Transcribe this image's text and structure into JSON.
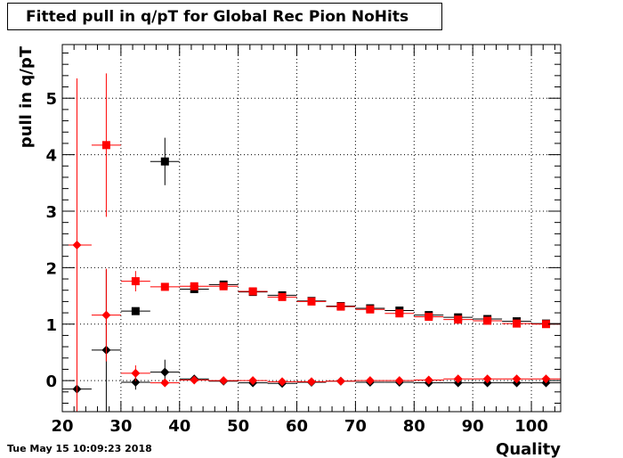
{
  "timestamp": "Tue May 15 10:09:23 2018",
  "chart_data": {
    "type": "scatter",
    "title": "Fitted pull in q/pT for Global Rec Pion NoHits",
    "xlabel": "Quality",
    "ylabel": "pull in q/pT",
    "xlim": [
      20,
      105
    ],
    "ylim": [
      -0.55,
      5.95
    ],
    "x_ticks": [
      20,
      30,
      40,
      50,
      60,
      70,
      80,
      90,
      100
    ],
    "y_ticks": [
      0,
      1,
      2,
      3,
      4,
      5
    ],
    "grid": true,
    "legend": "none",
    "series": [
      {
        "marker": "square",
        "color": "#000000",
        "points": [
          {
            "x": 32.5,
            "y": 1.23,
            "yerr": 0.06
          },
          {
            "x": 37.5,
            "y": 3.88,
            "yerr": 0.42
          },
          {
            "x": 42.5,
            "y": 1.62,
            "yerr": 0.04
          },
          {
            "x": 47.5,
            "y": 1.7,
            "yerr": 0.03
          },
          {
            "x": 52.5,
            "y": 1.57,
            "yerr": 0.02
          },
          {
            "x": 57.5,
            "y": 1.51,
            "yerr": 0.02
          },
          {
            "x": 62.5,
            "y": 1.41,
            "yerr": 0.02
          },
          {
            "x": 67.5,
            "y": 1.32,
            "yerr": 0.02
          },
          {
            "x": 72.5,
            "y": 1.28,
            "yerr": 0.02
          },
          {
            "x": 77.5,
            "y": 1.24,
            "yerr": 0.02
          },
          {
            "x": 82.5,
            "y": 1.16,
            "yerr": 0.02
          },
          {
            "x": 87.5,
            "y": 1.12,
            "yerr": 0.02
          },
          {
            "x": 92.5,
            "y": 1.09,
            "yerr": 0.02
          },
          {
            "x": 97.5,
            "y": 1.05,
            "yerr": 0.02
          },
          {
            "x": 102.5,
            "y": 1.01,
            "yerr": 0.02
          }
        ]
      },
      {
        "marker": "square",
        "color": "#ff0000",
        "points": [
          {
            "x": 27.5,
            "y": 4.17,
            "yerr": 1.27
          },
          {
            "x": 32.5,
            "y": 1.76,
            "yerr": 0.18
          },
          {
            "x": 37.5,
            "y": 1.66,
            "yerr": 0.06
          },
          {
            "x": 42.5,
            "y": 1.67,
            "yerr": 0.04
          },
          {
            "x": 47.5,
            "y": 1.67,
            "yerr": 0.03
          },
          {
            "x": 52.5,
            "y": 1.58,
            "yerr": 0.02
          },
          {
            "x": 57.5,
            "y": 1.48,
            "yerr": 0.02
          },
          {
            "x": 62.5,
            "y": 1.4,
            "yerr": 0.02
          },
          {
            "x": 67.5,
            "y": 1.31,
            "yerr": 0.02
          },
          {
            "x": 72.5,
            "y": 1.26,
            "yerr": 0.02
          },
          {
            "x": 77.5,
            "y": 1.19,
            "yerr": 0.02
          },
          {
            "x": 82.5,
            "y": 1.13,
            "yerr": 0.02
          },
          {
            "x": 87.5,
            "y": 1.08,
            "yerr": 0.02
          },
          {
            "x": 92.5,
            "y": 1.06,
            "yerr": 0.02
          },
          {
            "x": 97.5,
            "y": 1.01,
            "yerr": 0.02
          },
          {
            "x": 102.5,
            "y": 1.0,
            "yerr": 0.02
          }
        ]
      },
      {
        "marker": "diamond",
        "color": "#000000",
        "points": [
          {
            "x": 22.5,
            "y": -0.15,
            "yerr": 0.0
          },
          {
            "x": 27.5,
            "y": 0.54,
            "yerr": 1.43
          },
          {
            "x": 32.5,
            "y": -0.03,
            "yerr": 0.13
          },
          {
            "x": 37.5,
            "y": 0.15,
            "yerr": 0.22
          },
          {
            "x": 42.5,
            "y": 0.03,
            "yerr": 0.04
          },
          {
            "x": 47.5,
            "y": -0.01,
            "yerr": 0.02
          },
          {
            "x": 52.5,
            "y": -0.04,
            "yerr": 0.02
          },
          {
            "x": 57.5,
            "y": -0.05,
            "yerr": 0.02
          },
          {
            "x": 62.5,
            "y": -0.03,
            "yerr": 0.02
          },
          {
            "x": 67.5,
            "y": -0.01,
            "yerr": 0.02
          },
          {
            "x": 72.5,
            "y": -0.03,
            "yerr": 0.02
          },
          {
            "x": 77.5,
            "y": -0.03,
            "yerr": 0.02
          },
          {
            "x": 82.5,
            "y": -0.04,
            "yerr": 0.02
          },
          {
            "x": 87.5,
            "y": -0.04,
            "yerr": 0.02
          },
          {
            "x": 92.5,
            "y": -0.04,
            "yerr": 0.02
          },
          {
            "x": 97.5,
            "y": -0.04,
            "yerr": 0.02
          },
          {
            "x": 102.5,
            "y": -0.04,
            "yerr": 0.02
          }
        ]
      },
      {
        "marker": "diamond",
        "color": "#ff0000",
        "points": [
          {
            "x": 22.5,
            "y": 2.4,
            "yerr": 2.95
          },
          {
            "x": 27.5,
            "y": 1.16,
            "yerr": 0.82
          },
          {
            "x": 32.5,
            "y": 0.13,
            "yerr": 0.14
          },
          {
            "x": 37.5,
            "y": -0.04,
            "yerr": 0.06
          },
          {
            "x": 42.5,
            "y": 0.01,
            "yerr": 0.04
          },
          {
            "x": 47.5,
            "y": 0.0,
            "yerr": 0.02
          },
          {
            "x": 52.5,
            "y": 0.0,
            "yerr": 0.02
          },
          {
            "x": 57.5,
            "y": -0.02,
            "yerr": 0.02
          },
          {
            "x": 62.5,
            "y": -0.02,
            "yerr": 0.02
          },
          {
            "x": 67.5,
            "y": -0.01,
            "yerr": 0.02
          },
          {
            "x": 72.5,
            "y": 0.0,
            "yerr": 0.02
          },
          {
            "x": 77.5,
            "y": 0.0,
            "yerr": 0.02
          },
          {
            "x": 82.5,
            "y": 0.01,
            "yerr": 0.02
          },
          {
            "x": 87.5,
            "y": 0.03,
            "yerr": 0.02
          },
          {
            "x": 92.5,
            "y": 0.03,
            "yerr": 0.02
          },
          {
            "x": 97.5,
            "y": 0.03,
            "yerr": 0.02
          },
          {
            "x": 102.5,
            "y": 0.03,
            "yerr": 0.02
          }
        ]
      }
    ]
  }
}
